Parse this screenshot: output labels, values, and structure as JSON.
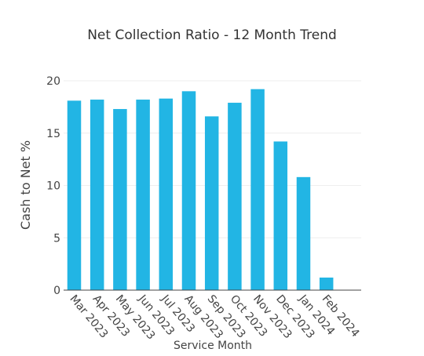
{
  "chart_data": {
    "type": "bar",
    "title": "Net Collection Ratio - 12 Month Trend",
    "xlabel": "Service Month",
    "ylabel": "Cash to Net %",
    "categories": [
      "Mar 2023",
      "Apr 2023",
      "May 2023",
      "Jun 2023",
      "Jul 2023",
      "Aug 2023",
      "Sep 2023",
      "Oct 2023",
      "Nov 2023",
      "Dec 2023",
      "Jan 2024",
      "Feb 2024"
    ],
    "values": [
      18.1,
      18.2,
      17.3,
      18.2,
      18.3,
      19.0,
      16.6,
      17.9,
      19.2,
      14.2,
      10.8,
      1.2
    ],
    "ylim": [
      0,
      20
    ],
    "yticks": [
      0,
      5,
      10,
      15,
      20
    ],
    "grid": true,
    "legend": "none",
    "bar_color": "#22b5e4",
    "grid_color": "#eeeeee",
    "axis_color": "#444444"
  }
}
